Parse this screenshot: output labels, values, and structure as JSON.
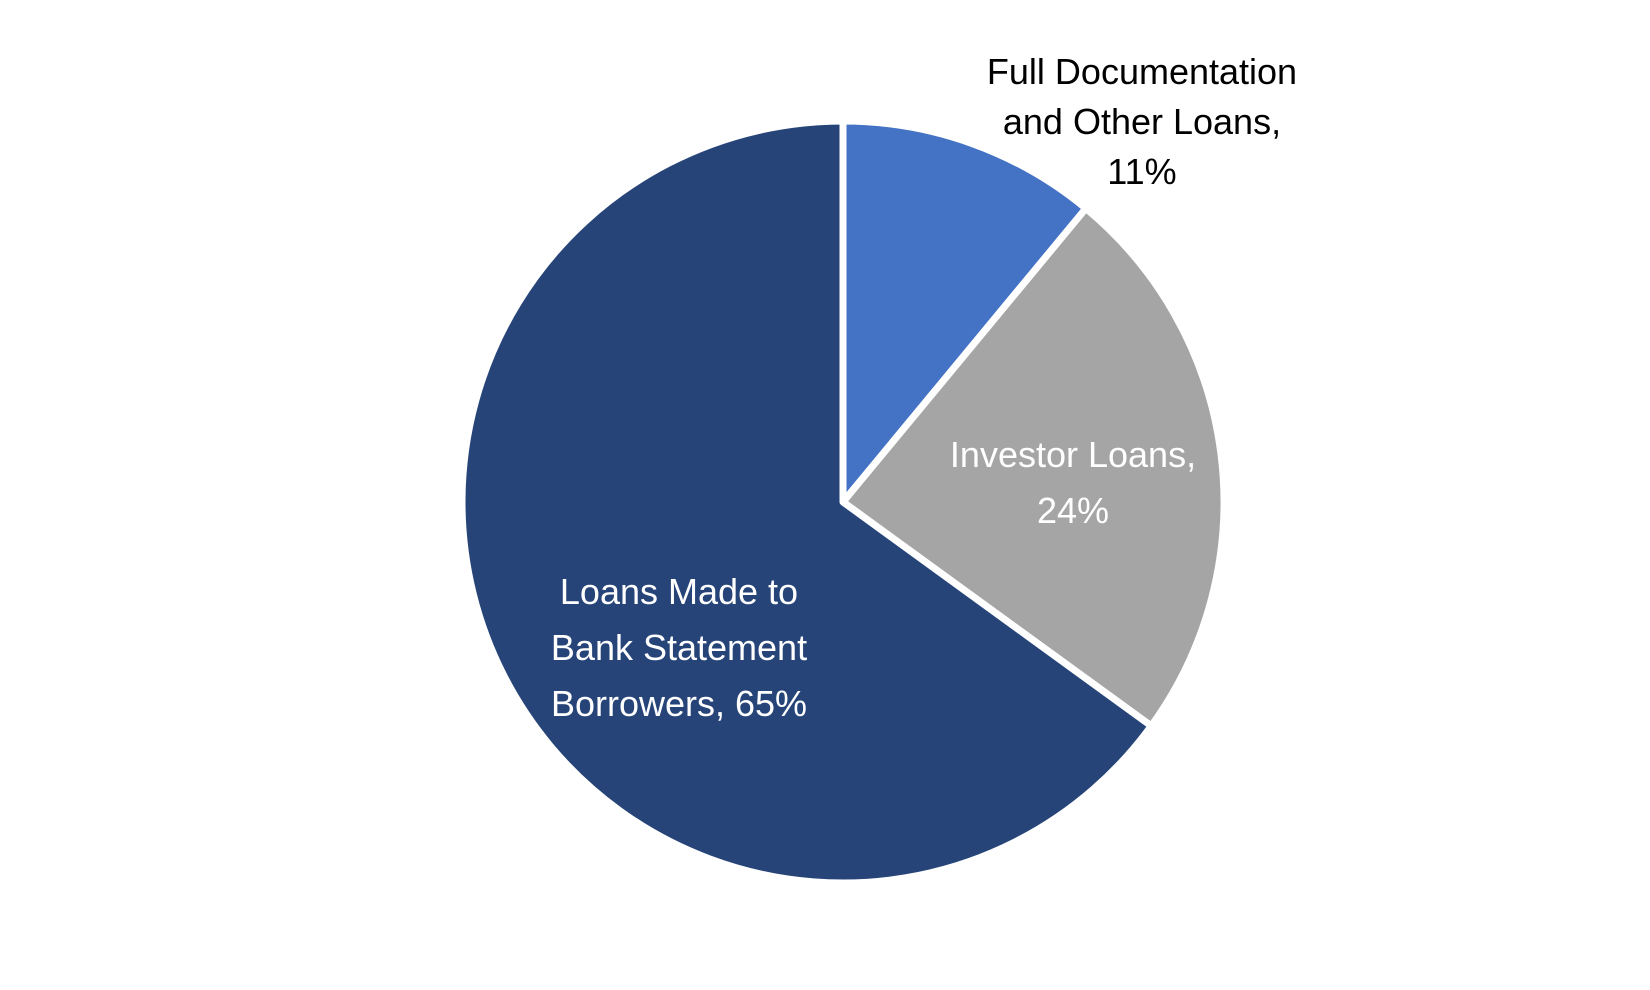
{
  "chart_data": {
    "type": "pie",
    "title": "",
    "start_angle": "12 o'clock, clockwise",
    "slices": [
      {
        "label_lines": [
          "Full Documentation",
          "and Other Loans,",
          "11%"
        ],
        "name": "Full Documentation and Other Loans",
        "value": 11,
        "color": "#4472C4",
        "label_color": "#000000",
        "label_position": "outside"
      },
      {
        "label_lines": [
          "Investor Loans,",
          "24%"
        ],
        "name": "Investor Loans",
        "value": 24,
        "color": "#A5A5A5",
        "label_color": "#FFFFFF",
        "label_position": "inside"
      },
      {
        "label_lines": [
          "Loans Made to",
          "Bank Statement",
          "Borrowers, 65%"
        ],
        "name": "Loans Made to Bank Statement Borrowers",
        "value": 65,
        "color": "#264478",
        "label_color": "#FFFFFF",
        "label_position": "inside"
      }
    ]
  }
}
